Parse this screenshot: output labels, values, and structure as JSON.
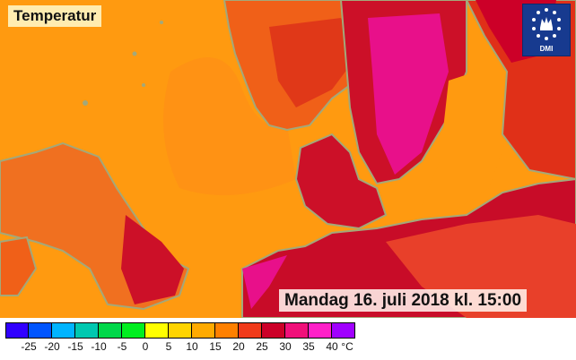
{
  "map": {
    "title": "Temperatur",
    "timestamp": "Mandag 16. juli 2018 kl. 15:00",
    "logo_text": "DMI",
    "logo_icon": "crown-star-ring-icon",
    "land_outline_color": "#a3a87a",
    "sea_color": "#ff9a10"
  },
  "legend": {
    "unit": "°C",
    "ticks": [
      "-25",
      "-20",
      "-15",
      "-10",
      "-5",
      "0",
      "5",
      "10",
      "15",
      "20",
      "25",
      "30",
      "35",
      "40"
    ],
    "colors": [
      "#3000ff",
      "#0055ff",
      "#00b4ff",
      "#00c8b0",
      "#00d84a",
      "#00ee20",
      "#ffff00",
      "#ffd400",
      "#ffaa00",
      "#ff8000",
      "#f03a1a",
      "#cc0028",
      "#f0107a",
      "#ff20c8",
      "#a000ff"
    ]
  }
}
